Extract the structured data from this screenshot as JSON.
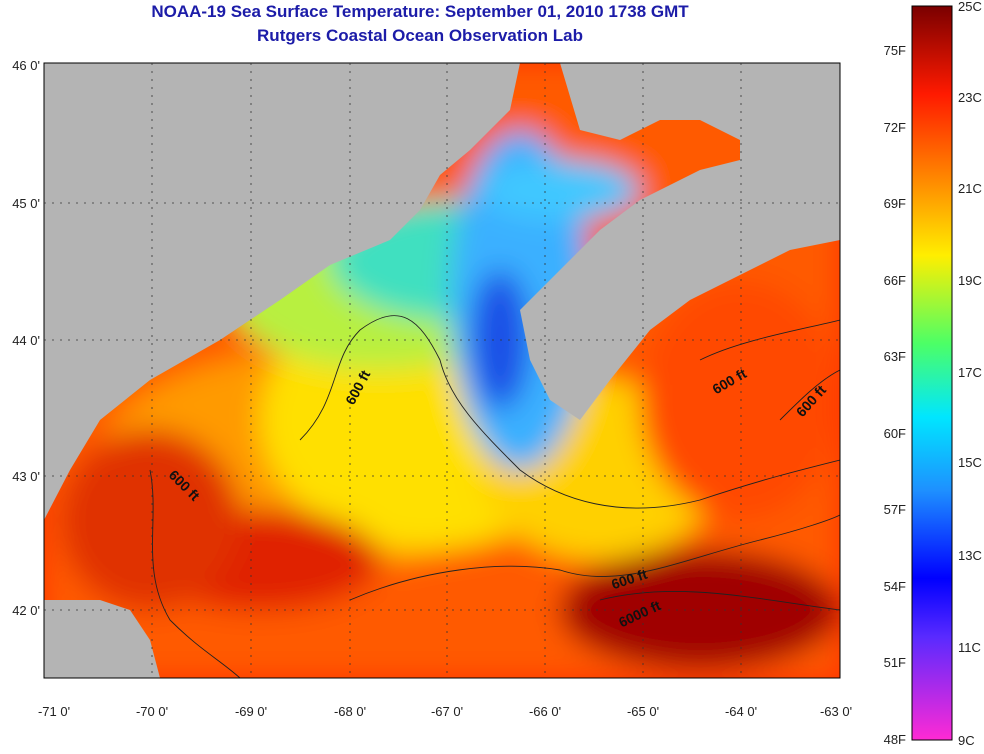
{
  "title": "NOAA-19 Sea Surface Temperature:  September 01, 2010 1738 GMT",
  "subtitle": "Rutgers Coastal Ocean Observation Lab",
  "map": {
    "lat_ticks": [
      "46 0'",
      "45 0'",
      "44 0'",
      "43 0'",
      "42 0'"
    ],
    "lon_ticks": [
      "-71 0'",
      "-70 0'",
      "-69 0'",
      "-68 0'",
      "-67 0'",
      "-66 0'",
      "-65 0'",
      "-64 0'",
      "-63 0'"
    ],
    "contour_labels": [
      "600 ft",
      "600 ft",
      "600 ft",
      "600 ft",
      "600 ft",
      "6000 ft"
    ],
    "land_color": "#b4b4b4",
    "graticule": "dotted"
  },
  "colorbar": {
    "celsius": [
      "25C",
      "23C",
      "21C",
      "19C",
      "17C",
      "15C",
      "13C",
      "11C",
      "9C"
    ],
    "fahrenheit": [
      "75F",
      "72F",
      "69F",
      "66F",
      "63F",
      "60F",
      "57F",
      "54F",
      "51F",
      "48F"
    ]
  }
}
